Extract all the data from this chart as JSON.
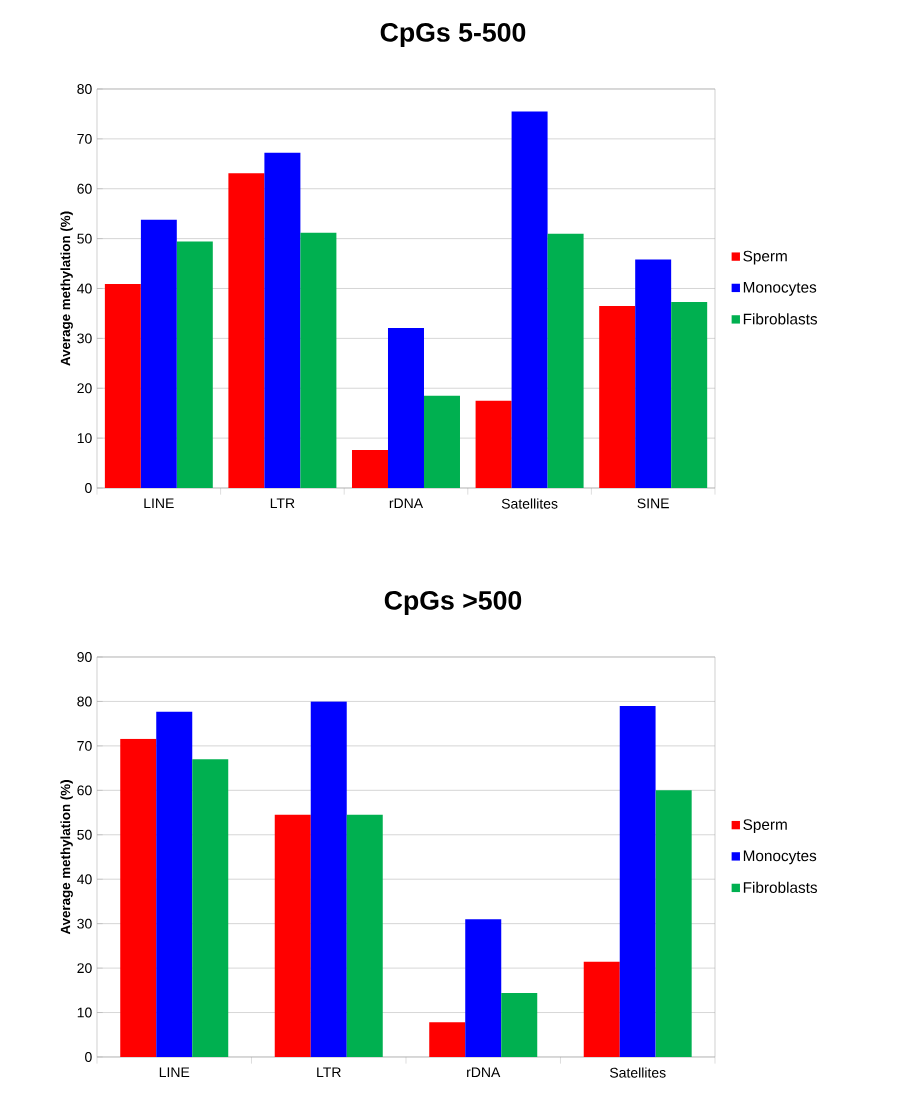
{
  "chart_data": [
    {
      "type": "bar",
      "title": "CpGs 5-500",
      "ylabel": "Average methylation (%)",
      "categories": [
        "LINE",
        "LTR",
        "rDNA",
        "Satellites",
        "SINE"
      ],
      "series": [
        {
          "name": "Sperm",
          "color": "#ff0000",
          "values": [
            40.9,
            63.1,
            7.6,
            17.5,
            36.5
          ]
        },
        {
          "name": "Monocytes",
          "color": "#0000ff",
          "values": [
            53.8,
            67.2,
            32.1,
            75.5,
            45.8
          ]
        },
        {
          "name": "Fibroblasts",
          "color": "#00b050",
          "values": [
            49.4,
            51.2,
            18.5,
            51.0,
            37.3
          ]
        }
      ],
      "ylim": [
        0,
        80
      ],
      "yticks": [
        0,
        10,
        20,
        30,
        40,
        50,
        60,
        70,
        80
      ],
      "grid": "y",
      "legend": "right"
    },
    {
      "type": "bar",
      "title": "CpGs >500",
      "ylabel": "Average methylation (%)",
      "categories": [
        "LINE",
        "LTR",
        "rDNA",
        "Satellites"
      ],
      "series": [
        {
          "name": "Sperm",
          "color": "#ff0000",
          "values": [
            71.6,
            54.5,
            7.8,
            21.4
          ]
        },
        {
          "name": "Monocytes",
          "color": "#0000ff",
          "values": [
            77.7,
            80.0,
            31.0,
            79.0
          ]
        },
        {
          "name": "Fibroblasts",
          "color": "#00b050",
          "values": [
            67.0,
            54.5,
            14.4,
            60.0
          ]
        }
      ],
      "ylim": [
        0,
        90
      ],
      "yticks": [
        0,
        10,
        20,
        30,
        40,
        50,
        60,
        70,
        80,
        90
      ],
      "grid": "y",
      "legend": "right"
    }
  ]
}
